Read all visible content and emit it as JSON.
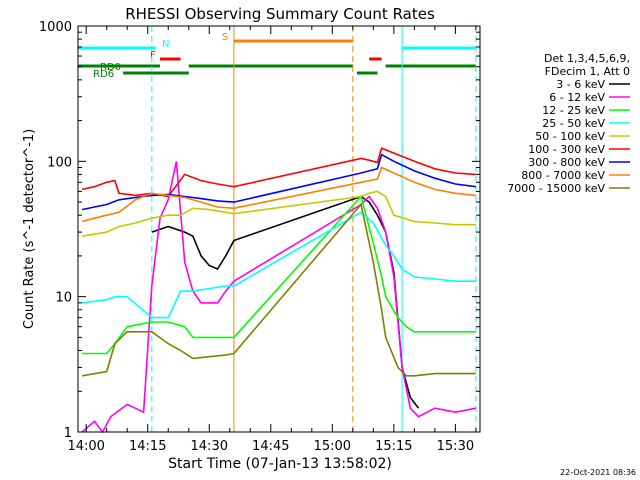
{
  "chart_data": {
    "type": "line",
    "title": "RHESSI Observing Summary Count Rates",
    "xlabel": "Start Time (07-Jan-13 13:58:02)",
    "ylabel": "Count Rate (s^-1 detector^-1)",
    "y_scale": "log",
    "ylim": [
      1,
      1000
    ],
    "xlim": [
      "13:58",
      "15:36"
    ],
    "x_ticks": [
      "14:00",
      "14:15",
      "14:30",
      "14:45",
      "15:00",
      "15:15",
      "15:30"
    ],
    "y_ticks": [
      "1",
      "10",
      "100",
      "1000"
    ],
    "grid": false,
    "legend_position": "right",
    "legend_header": [
      "Det 1,3,4,5,6,9,",
      "FDecim 1, Att 0"
    ],
    "footer_date": "22-Oct-2021 08:36",
    "flag_labels": {
      "N": "N",
      "F": "F",
      "RD0": "RD0",
      "RD6": "RD6",
      "S": "S"
    },
    "flag_bars": [
      {
        "label": "N",
        "color": "#00ffff",
        "segments": [
          [
            "13:58",
            "14:17"
          ],
          [
            "15:17",
            "15:35"
          ]
        ]
      },
      {
        "label": "S",
        "color": "#ff8000",
        "segments": [
          [
            "14:36",
            "15:05"
          ]
        ]
      },
      {
        "label": "F",
        "color": "#ff0000",
        "segments": [
          [
            "14:18",
            "14:23"
          ],
          [
            "15:09",
            "15:12"
          ]
        ]
      },
      {
        "label": "RD0",
        "color": "#008000",
        "segments": [
          [
            "13:58",
            "14:18"
          ],
          [
            "14:25",
            "15:05"
          ],
          [
            "15:13",
            "15:35"
          ]
        ]
      },
      {
        "label": "RD6",
        "color": "#008000",
        "segments": [
          [
            "14:09",
            "14:25"
          ],
          [
            "15:06",
            "15:11"
          ]
        ]
      }
    ],
    "vertical_markers": [
      {
        "time": "14:16",
        "color": "#00ffff",
        "style": "dashed"
      },
      {
        "time": "14:36",
        "color": "#ff8000",
        "style": "solid"
      },
      {
        "time": "15:05",
        "color": "#ff8000",
        "style": "dashed"
      },
      {
        "time": "15:17",
        "color": "#00ffff",
        "style": "solid"
      },
      {
        "time": "15:35",
        "color": "#00ffff",
        "style": "dashed"
      }
    ],
    "series": [
      {
        "name": "3 - 6 keV",
        "color": "#000000",
        "x": [
          "14:16",
          "14:20",
          "14:24",
          "14:26",
          "14:28",
          "14:30",
          "14:32",
          "14:34",
          "14:36",
          "15:07",
          "15:09",
          "15:11",
          "15:13",
          "15:15",
          "15:17",
          "15:19",
          "15:21"
        ],
        "y": [
          30,
          33,
          30,
          28,
          20,
          17,
          16,
          20,
          26,
          55,
          50,
          40,
          30,
          15,
          3,
          1.8,
          1.5
        ]
      },
      {
        "name": "6 - 12 keV",
        "color": "#ff00ff",
        "x": [
          "13:59",
          "14:02",
          "14:04",
          "14:06",
          "14:10",
          "14:12",
          "14:14",
          "14:16",
          "14:18",
          "14:20",
          "14:22",
          "14:24",
          "14:26",
          "14:28",
          "14:30",
          "14:32",
          "14:34",
          "14:36",
          "15:07",
          "15:09",
          "15:11",
          "15:13",
          "15:15",
          "15:17",
          "15:19",
          "15:21",
          "15:25",
          "15:30",
          "15:35"
        ],
        "y": [
          1,
          1.2,
          1,
          1.3,
          1.6,
          1.5,
          1.4,
          12,
          38,
          52,
          100,
          18,
          11,
          9,
          9,
          9,
          11,
          13,
          48,
          55,
          45,
          30,
          14,
          3,
          1.5,
          1.3,
          1.5,
          1.4,
          1.5
        ]
      },
      {
        "name": "12 - 25 keV",
        "color": "#00ff00",
        "x": [
          "13:59",
          "14:05",
          "14:07",
          "14:10",
          "14:16",
          "14:20",
          "14:24",
          "14:26",
          "14:30",
          "14:34",
          "14:36",
          "15:07",
          "15:10",
          "15:12",
          "15:13",
          "15:16",
          "15:18",
          "15:20",
          "15:25",
          "15:30",
          "15:35"
        ],
        "y": [
          3.8,
          3.8,
          4.5,
          6,
          6.5,
          6.5,
          6,
          5,
          5,
          5,
          5,
          55,
          25,
          14,
          10,
          7,
          6,
          5.5,
          5.5,
          5.5,
          5.5
        ]
      },
      {
        "name": "25 - 50 keV",
        "color": "#00ffff",
        "x": [
          "13:59",
          "14:05",
          "14:07",
          "14:10",
          "14:16",
          "14:20",
          "14:23",
          "14:26",
          "14:30",
          "14:34",
          "14:36",
          "15:07",
          "15:10",
          "15:13",
          "15:15",
          "15:17",
          "15:20",
          "15:25",
          "15:30",
          "15:35"
        ],
        "y": [
          9,
          9.5,
          10,
          10,
          7,
          7,
          11,
          11,
          11.5,
          12,
          12,
          42,
          35,
          24,
          20,
          16,
          14,
          13.5,
          13,
          13
        ]
      },
      {
        "name": "50 - 100 keV",
        "color": "#c8c800",
        "x": [
          "13:59",
          "14:05",
          "14:08",
          "14:12",
          "14:16",
          "14:20",
          "14:23",
          "14:26",
          "14:30",
          "14:34",
          "14:36",
          "15:07",
          "15:09",
          "15:11",
          "15:13",
          "15:15",
          "15:20",
          "15:25",
          "15:30",
          "15:35"
        ],
        "y": [
          28,
          30,
          33,
          35,
          38,
          40,
          40,
          45,
          44,
          42,
          41,
          55,
          58,
          60,
          55,
          40,
          36,
          35,
          34,
          34
        ]
      },
      {
        "name": "100 - 300 keV",
        "color": "#ff0000",
        "x": [
          "13:59",
          "14:02",
          "14:05",
          "14:07",
          "14:08",
          "14:12",
          "14:16",
          "14:20",
          "14:24",
          "14:28",
          "14:32",
          "14:36",
          "15:07",
          "15:09",
          "15:11",
          "15:12",
          "15:15",
          "15:20",
          "15:25",
          "15:30",
          "15:35"
        ],
        "y": [
          62,
          65,
          70,
          72,
          58,
          56,
          58,
          55,
          80,
          72,
          68,
          65,
          105,
          102,
          98,
          125,
          115,
          100,
          88,
          82,
          80
        ]
      },
      {
        "name": "300 - 800 keV",
        "color": "#0000ff",
        "x": [
          "13:59",
          "14:02",
          "14:05",
          "14:08",
          "14:12",
          "14:16",
          "14:20",
          "14:24",
          "14:28",
          "14:32",
          "14:36",
          "15:07",
          "15:09",
          "15:11",
          "15:12",
          "15:15",
          "15:20",
          "15:25",
          "15:30",
          "15:35"
        ],
        "y": [
          44,
          46,
          48,
          52,
          54,
          56,
          57,
          55,
          53,
          51,
          50,
          82,
          85,
          88,
          112,
          100,
          85,
          75,
          68,
          65
        ]
      },
      {
        "name": "800 - 7000 keV",
        "color": "#ff8000",
        "x": [
          "13:59",
          "14:02",
          "14:05",
          "14:08",
          "14:12",
          "14:16",
          "14:20",
          "14:24",
          "14:28",
          "14:32",
          "14:36",
          "15:07",
          "15:09",
          "15:11",
          "15:12",
          "15:15",
          "15:20",
          "15:25",
          "15:30",
          "15:35"
        ],
        "y": [
          36,
          38,
          40,
          42,
          52,
          58,
          56,
          54,
          50,
          46,
          45,
          70,
          72,
          74,
          90,
          82,
          70,
          62,
          58,
          56
        ]
      },
      {
        "name": "7000 - 15000 keV",
        "color": "#808000",
        "x": [
          "13:59",
          "14:05",
          "14:07",
          "14:10",
          "14:16",
          "14:20",
          "14:23",
          "14:26",
          "14:30",
          "14:34",
          "14:36",
          "15:07",
          "15:10",
          "15:12",
          "15:13",
          "15:16",
          "15:18",
          "15:20",
          "15:25",
          "15:30",
          "15:35"
        ],
        "y": [
          2.6,
          2.8,
          4.5,
          5.5,
          5.5,
          4.5,
          4,
          3.5,
          3.6,
          3.7,
          3.8,
          48,
          18,
          8,
          5,
          3,
          2.6,
          2.6,
          2.7,
          2.7,
          2.7
        ]
      }
    ]
  }
}
